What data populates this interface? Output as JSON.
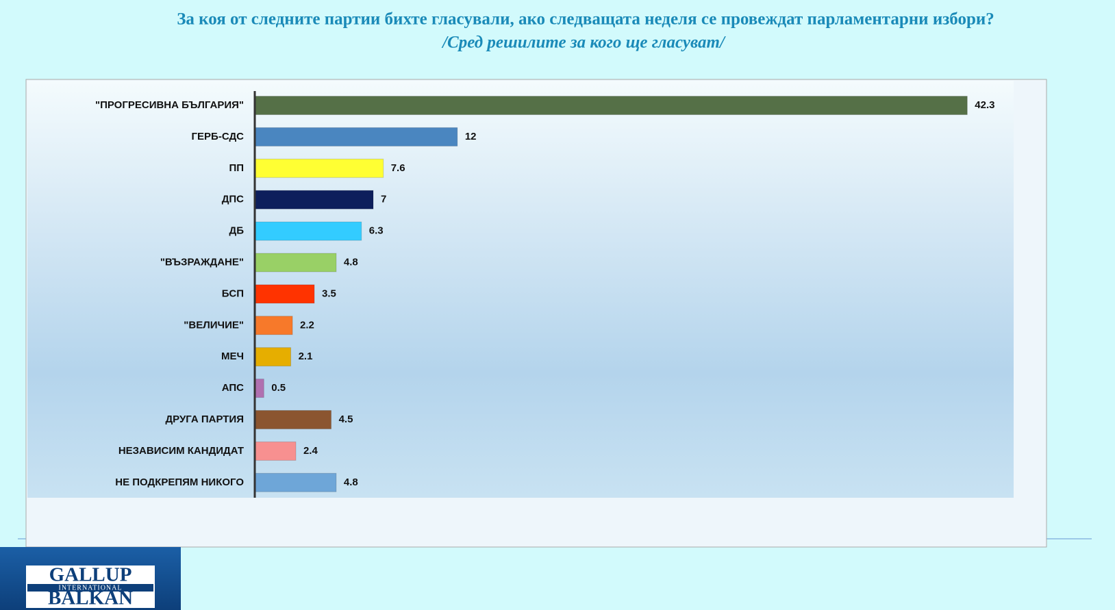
{
  "chart_data": {
    "type": "hbar",
    "title": "За коя от следните партии бихте  гласували,  ако следващата неделя се провеждат парламентарни избори?",
    "subtitle": "/Сред решилите за кого ще гласуват/",
    "categories": [
      "\"ПРОГРЕСИВНА БЪЛГАРИЯ\"",
      "ГЕРБ-СДС",
      "ПП",
      "ДПС",
      "ДБ",
      "\"ВЪЗРАЖДАНЕ\"",
      "БСП",
      "\"ВЕЛИЧИЕ\"",
      "МЕЧ",
      "АПС",
      "ДРУГА ПАРТИЯ",
      "НЕЗАВИСИМ КАНДИДАТ",
      "НЕ ПОДКРЕПЯМ НИКОГО"
    ],
    "values": [
      42.3,
      12,
      7.6,
      7,
      6.3,
      4.8,
      3.5,
      2.2,
      2.1,
      0.5,
      4.5,
      2.4,
      4.8
    ],
    "colors": [
      "#557047",
      "#4a86c0",
      "#ffff33",
      "#0d1f5c",
      "#33ccff",
      "#99d066",
      "#ff3300",
      "#f7792a",
      "#e6ae00",
      "#b070b0",
      "#8b5530",
      "#f79090",
      "#6ea6d8"
    ]
  },
  "logo": {
    "line1": "GALLUP",
    "line2": "INTERNATIONAL",
    "line3": "BALKAN"
  }
}
